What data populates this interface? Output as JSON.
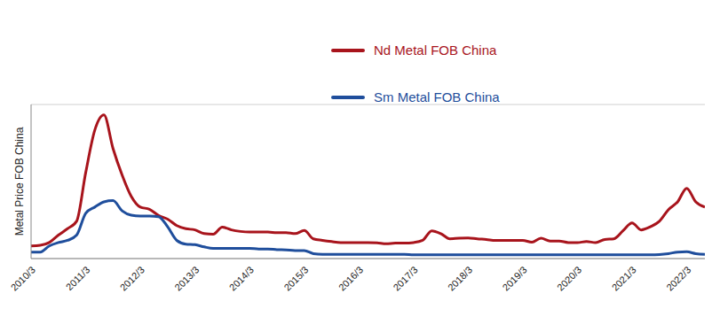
{
  "chart_data": {
    "type": "line",
    "y_label": "Metal Price FOB China",
    "categories": [
      "2010/3",
      null,
      null,
      null,
      null,
      null,
      "2011/3",
      null,
      null,
      null,
      null,
      null,
      "2012/3",
      null,
      null,
      null,
      null,
      null,
      "2013/3",
      null,
      null,
      null,
      null,
      null,
      "2014/3",
      null,
      null,
      null,
      null,
      null,
      "2015/3",
      null,
      null,
      null,
      null,
      null,
      "2016/3",
      null,
      null,
      null,
      null,
      null,
      "2017/3",
      null,
      null,
      null,
      null,
      null,
      "2018/3",
      null,
      null,
      null,
      null,
      null,
      "2019/3",
      null,
      null,
      null,
      null,
      null,
      "2020/3",
      null,
      null,
      null,
      null,
      null,
      "2021/3",
      null,
      null,
      null,
      null,
      null,
      "2022/3",
      null,
      null
    ],
    "series": [
      {
        "name": "Nd Metal FOB China",
        "color": "#a8141c",
        "values": [
          41,
          43,
          52,
          76,
          97,
          121,
          279,
          417,
          466,
          357,
          271,
          202,
          167,
          160,
          140,
          128,
          107,
          97,
          93,
          81,
          79,
          102,
          93,
          88,
          86,
          86,
          86,
          84,
          84,
          81,
          91,
          64,
          59,
          55,
          52,
          52,
          52,
          52,
          51,
          48,
          50,
          50,
          52,
          59,
          90,
          81,
          64,
          66,
          67,
          64,
          62,
          59,
          59,
          59,
          59,
          53,
          66,
          57,
          57,
          52,
          52,
          55,
          52,
          62,
          64,
          90,
          116,
          93,
          103,
          121,
          159,
          184,
          228,
          184,
          167
        ]
      },
      {
        "name": "Sm Metal FOB China",
        "color": "#1f4e9c",
        "values": [
          21,
          21,
          41,
          52,
          59,
          76,
          147,
          167,
          184,
          188,
          155,
          141,
          138,
          138,
          136,
          103,
          59,
          47,
          45,
          38,
          33,
          33,
          33,
          33,
          33,
          31,
          31,
          29,
          28,
          26,
          26,
          16,
          14,
          14,
          14,
          14,
          14,
          14,
          14,
          14,
          14,
          14,
          12,
          12,
          12,
          12,
          12,
          12,
          12,
          12,
          12,
          12,
          12,
          12,
          12,
          12,
          12,
          12,
          12,
          12,
          12,
          12,
          12,
          12,
          12,
          12,
          12,
          12,
          12,
          13,
          16,
          21,
          22,
          16,
          14
        ]
      }
    ],
    "ylim": [
      0,
      500
    ],
    "yticks": [
      50,
      150,
      250,
      350,
      450
    ],
    "grid": true,
    "tick_labels": "x",
    "legend": "top"
  }
}
